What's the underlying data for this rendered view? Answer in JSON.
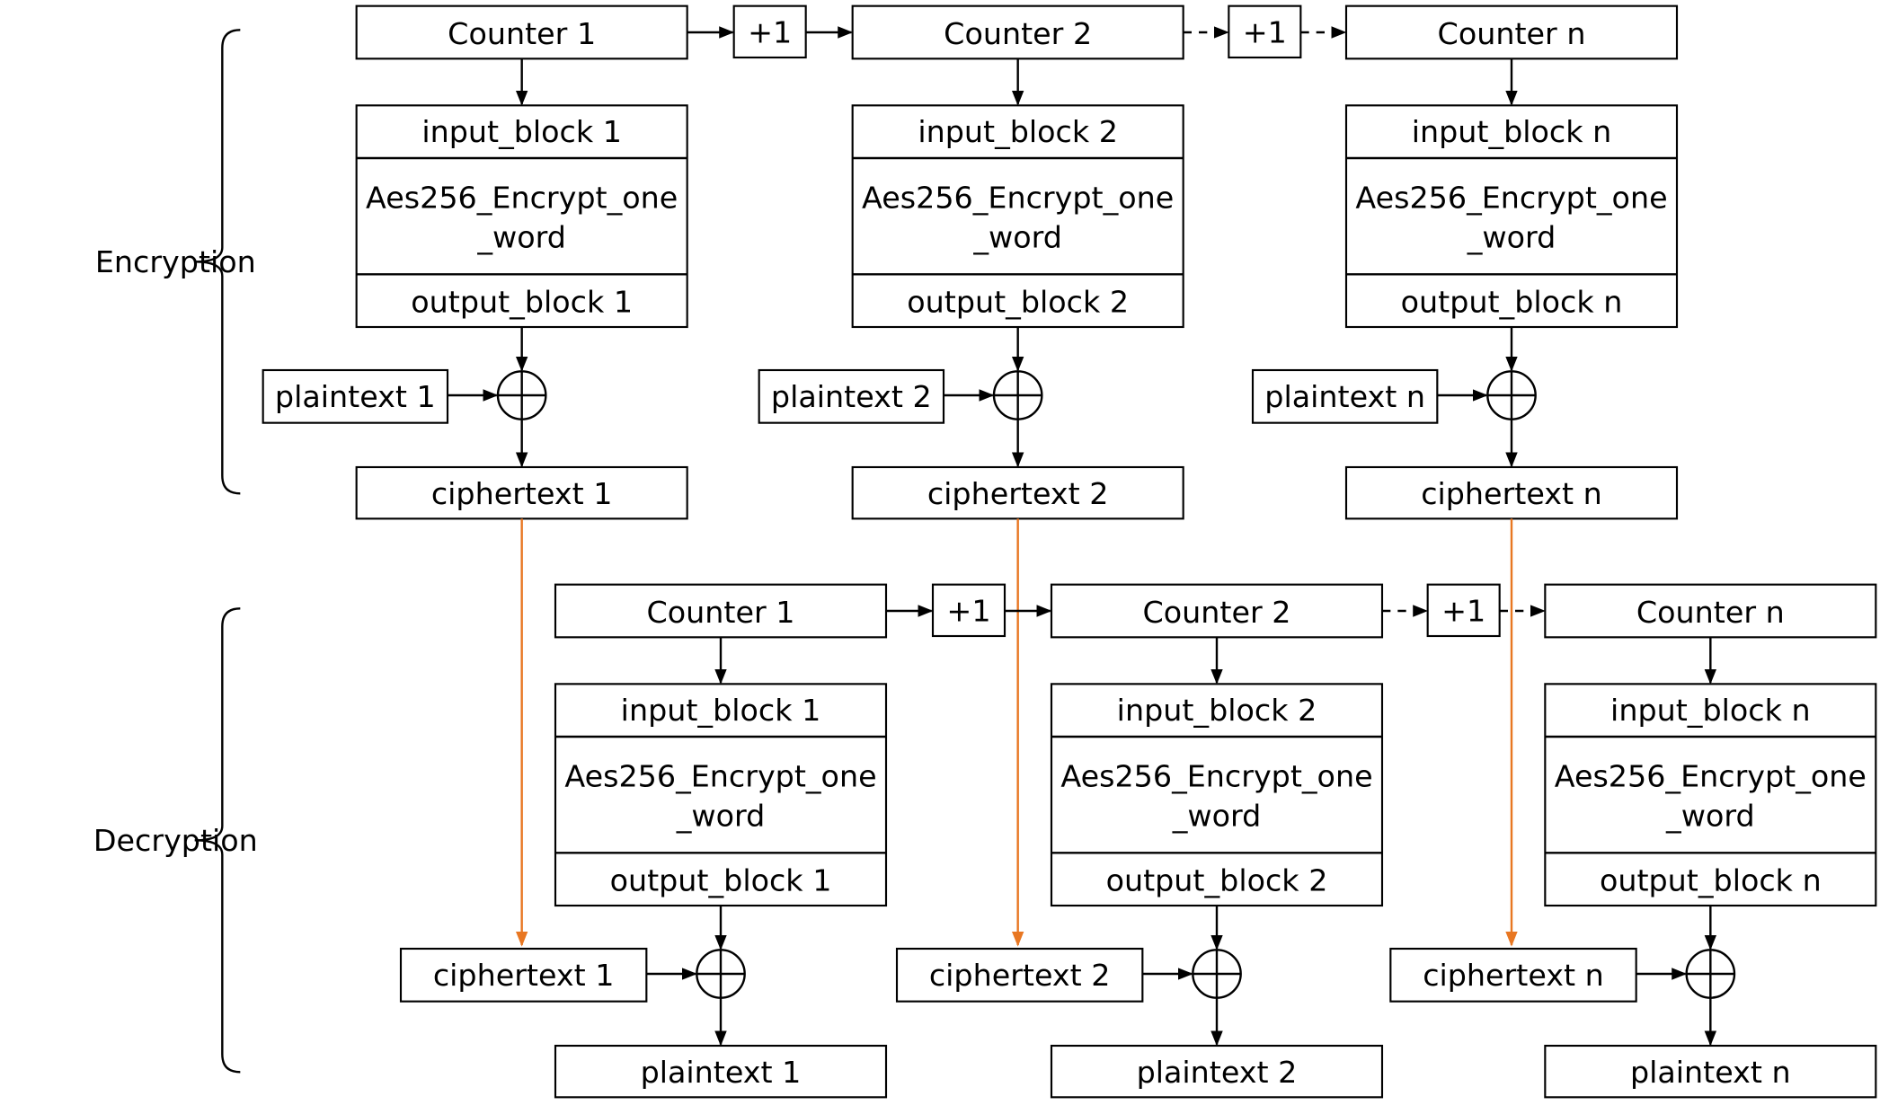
{
  "sections": [
    {
      "label": "Encryption",
      "increments": [
        "+1",
        "+1"
      ],
      "columns": [
        {
          "counter": "Counter 1",
          "input_block": "input_block 1",
          "function": [
            "Aes256_Encrypt_one",
            "_word"
          ],
          "output_block": "output_block 1",
          "side_input": "plaintext 1",
          "result": "ciphertext 1"
        },
        {
          "counter": "Counter 2",
          "input_block": "input_block 2",
          "function": [
            "Aes256_Encrypt_one",
            "_word"
          ],
          "output_block": "output_block 2",
          "side_input": "plaintext 2",
          "result": "ciphertext 2"
        },
        {
          "counter": "Counter n",
          "input_block": "input_block n",
          "function": [
            "Aes256_Encrypt_one",
            "_word"
          ],
          "output_block": "output_block n",
          "side_input": "plaintext n",
          "result": "ciphertext n"
        }
      ]
    },
    {
      "label": "Decryption",
      "increments": [
        "+1",
        "+1"
      ],
      "columns": [
        {
          "counter": "Counter 1",
          "input_block": "input_block 1",
          "function": [
            "Aes256_Encrypt_one",
            "_word"
          ],
          "output_block": "output_block 1",
          "side_input": "ciphertext 1",
          "result": "plaintext 1"
        },
        {
          "counter": "Counter 2",
          "input_block": "input_block 2",
          "function": [
            "Aes256_Encrypt_one",
            "_word"
          ],
          "output_block": "output_block 2",
          "side_input": "ciphertext 2",
          "result": "plaintext 2"
        },
        {
          "counter": "Counter n",
          "input_block": "input_block n",
          "function": [
            "Aes256_Encrypt_one",
            "_word"
          ],
          "output_block": "output_block n",
          "side_input": "ciphertext n",
          "result": "plaintext n"
        }
      ]
    }
  ]
}
